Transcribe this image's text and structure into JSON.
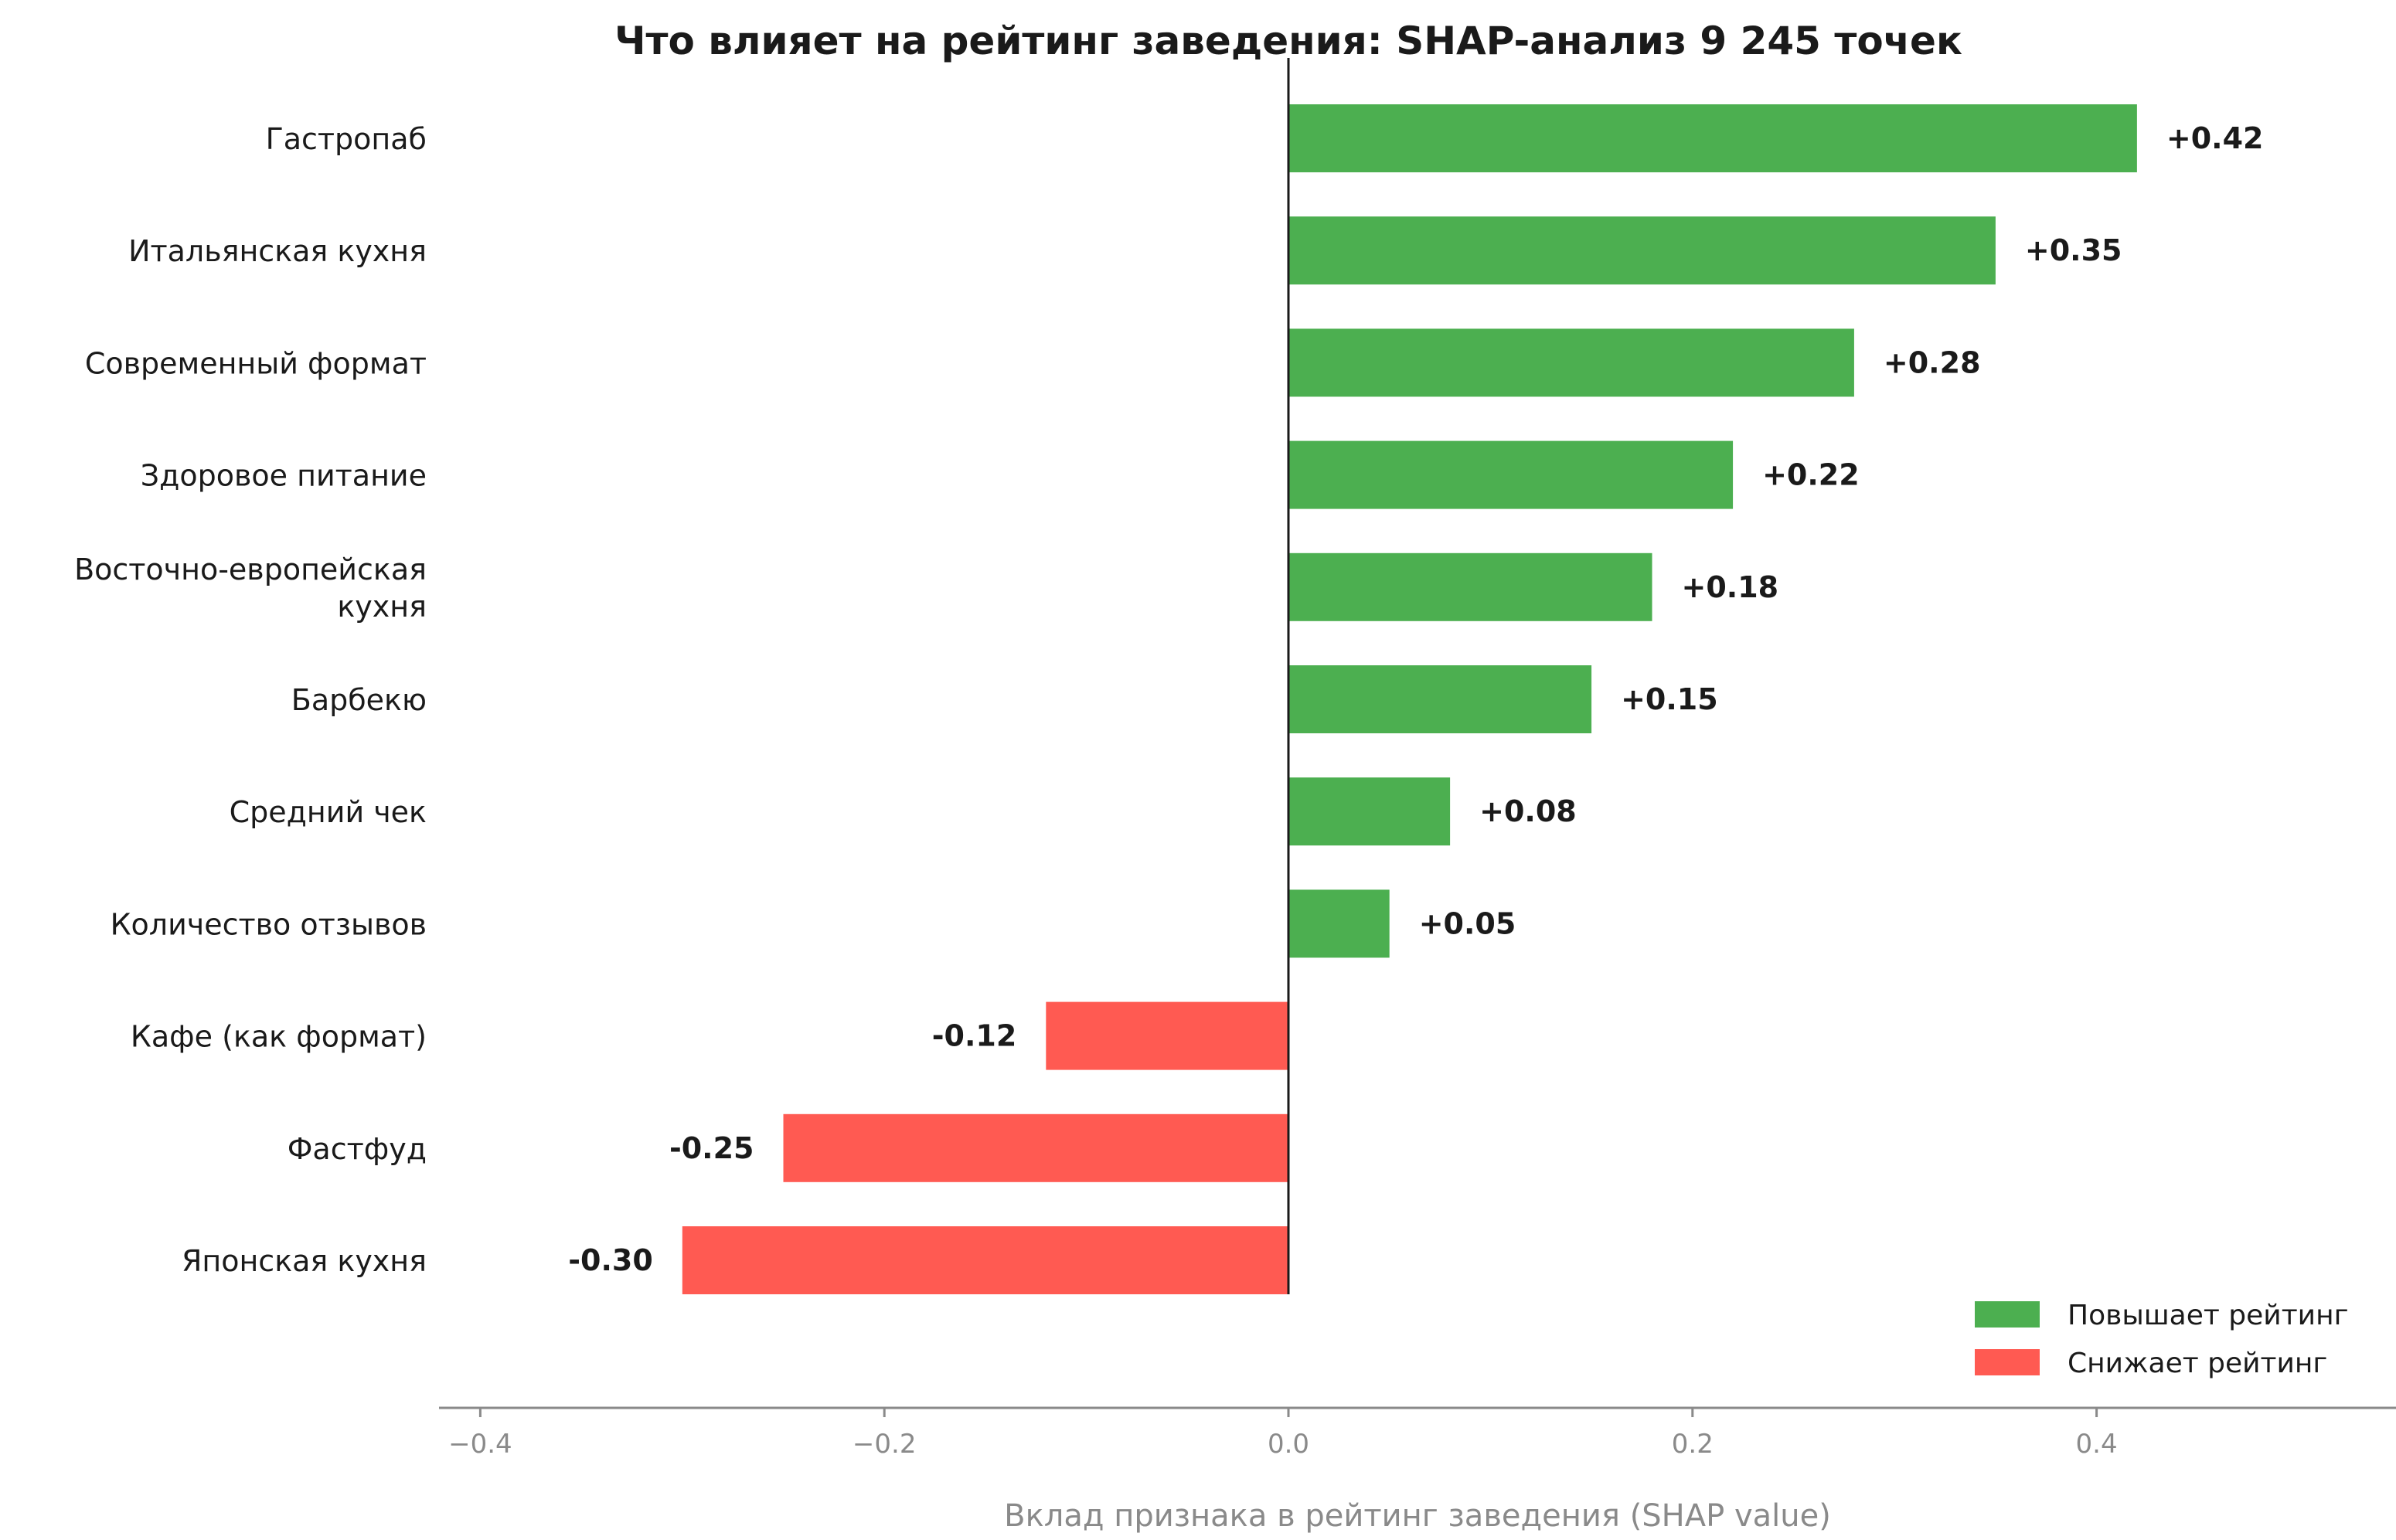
{
  "chart_data": {
    "type": "bar",
    "orientation": "horizontal",
    "title": "Что влияет на рейтинг заведения: SHAP-анализ 9 245 точек",
    "xlabel": "Вклад признака в рейтинг заведения (SHAP value)",
    "ylabel": "",
    "xlim": [
      -0.42,
      0.55
    ],
    "xticks": [
      -0.4,
      -0.2,
      0.0,
      0.2,
      0.4
    ],
    "xtick_labels": [
      "−0.4",
      "−0.2",
      "0.0",
      "0.2",
      "0.4"
    ],
    "grid": false,
    "categories": [
      [
        "Гастропаб"
      ],
      [
        "Итальянская кухня"
      ],
      [
        "Современный формат"
      ],
      [
        "Здоровое питание"
      ],
      [
        "Восточно-европейская",
        "кухня"
      ],
      [
        "Барбекю"
      ],
      [
        "Средний чек"
      ],
      [
        "Количество отзывов"
      ],
      [
        "Кафе (как формат)"
      ],
      [
        "Фастфуд"
      ],
      [
        "Японская кухня"
      ]
    ],
    "values": [
      0.42,
      0.35,
      0.28,
      0.22,
      0.18,
      0.15,
      0.08,
      0.05,
      -0.12,
      -0.25,
      -0.3
    ],
    "value_labels": [
      "+0.42",
      "+0.35",
      "+0.28",
      "+0.22",
      "+0.18",
      "+0.15",
      "+0.08",
      "+0.05",
      "-0.12",
      "-0.25",
      "-0.30"
    ],
    "colors": {
      "positive": "#4caf50",
      "negative": "#ff5a52",
      "axis": "#8a8a8a",
      "zero_line": "#1a1a1a"
    },
    "legend": {
      "position": "bottom-right",
      "items": [
        {
          "label": "Повышает рейтинг",
          "color": "#4caf50"
        },
        {
          "label": "Снижает рейтинг",
          "color": "#ff5a52"
        }
      ]
    }
  }
}
